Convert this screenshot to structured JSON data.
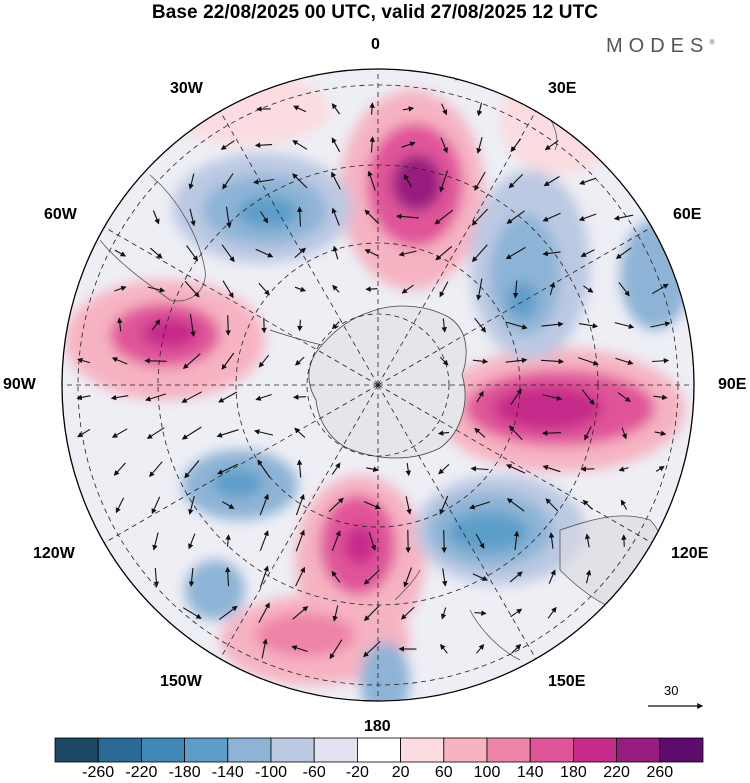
{
  "header": {
    "title": "Base 22/08/2025 00 UTC, valid 27/08/2025 12 UTC",
    "brand": "MODES",
    "brand_mark": "®"
  },
  "map": {
    "projection": "south-polar-stereographic",
    "longitude_labels": [
      "0",
      "30E",
      "60E",
      "90E",
      "120E",
      "150E",
      "180",
      "150W",
      "120W",
      "90W",
      "60W",
      "30W"
    ],
    "reference_vector": {
      "value": "30"
    }
  },
  "colorbar": {
    "labels": [
      "-260",
      "-220",
      "-180",
      "-140",
      "-100",
      "-60",
      "-20",
      "20",
      "60",
      "100",
      "140",
      "180",
      "220",
      "260"
    ],
    "colors": [
      "#1c4a66",
      "#2b6a95",
      "#3f88b8",
      "#5d9ec9",
      "#8db4d6",
      "#bcc9e3",
      "#e2e2f0",
      "#ffffff",
      "#fbdce0",
      "#f6b3c2",
      "#ee84a8",
      "#e0559a",
      "#c62a8a",
      "#971c80",
      "#5e0b6e"
    ]
  }
}
